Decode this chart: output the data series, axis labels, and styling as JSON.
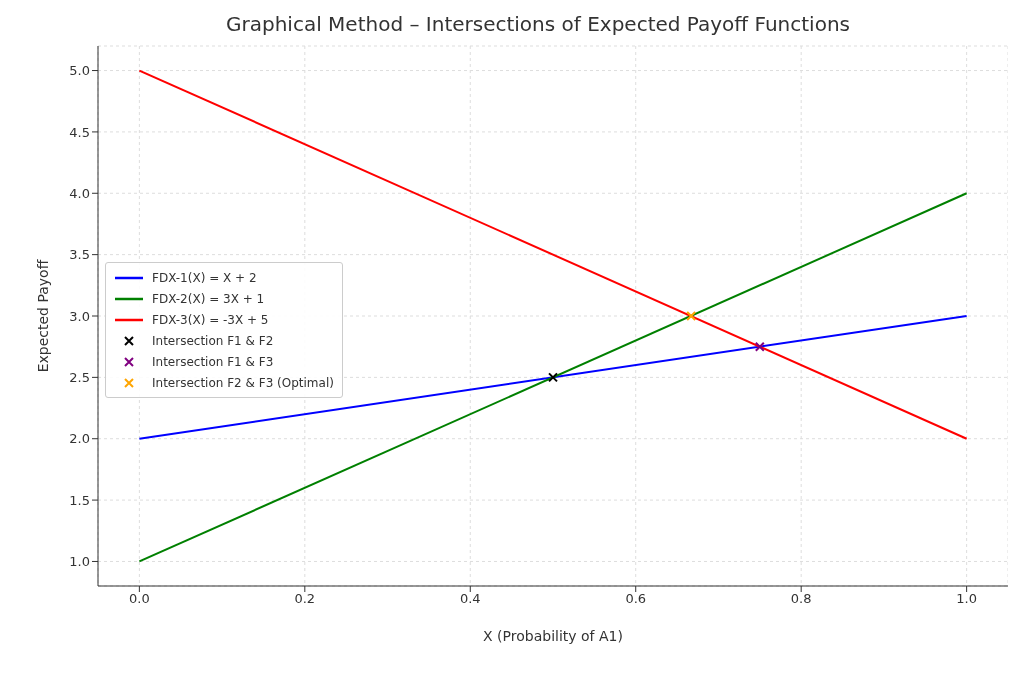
{
  "chart_data": {
    "type": "line",
    "title": "Graphical Method – Intersections of Expected Payoff Functions",
    "xlabel": "X (Probability of A1)",
    "ylabel": "Expected Payoff",
    "series": [
      {
        "name": "FDX-1(X) = X + 2",
        "color": "#0000ff",
        "x": [
          0,
          1
        ],
        "values": [
          2,
          3
        ],
        "marker": "none"
      },
      {
        "name": "FDX-2(X) = 3X + 1",
        "color": "#008000",
        "x": [
          0,
          1
        ],
        "values": [
          1,
          4
        ],
        "marker": "none"
      },
      {
        "name": "FDX-3(X) = -3X + 5",
        "color": "#ff0000",
        "x": [
          0,
          1
        ],
        "values": [
          5,
          2
        ],
        "marker": "none"
      },
      {
        "name": "Intersection F1 & F2",
        "type": "scatter",
        "marker": "cross",
        "color": "#000000",
        "x": [
          0.5
        ],
        "values": [
          2.5
        ]
      },
      {
        "name": "Intersection F1 & F3",
        "type": "scatter",
        "marker": "cross",
        "color": "#800080",
        "x": [
          0.75
        ],
        "values": [
          2.75
        ]
      },
      {
        "name": "Intersection F2 & F3 (Optimal)",
        "type": "scatter",
        "marker": "cross",
        "color": "#ffa500",
        "x": [
          0.667
        ],
        "values": [
          3.0
        ]
      }
    ],
    "xlim": [
      -0.05,
      1.05
    ],
    "xticks": [
      {
        "value": 0,
        "label": "0.0"
      },
      0.2,
      0.4,
      0.6,
      0.8,
      {
        "value": 1,
        "label": "1.0"
      }
    ],
    "ylim": [
      0.8,
      5.2
    ],
    "yticks": [
      {
        "value": 1,
        "label": "1.0"
      },
      1.5,
      {
        "value": 2,
        "label": "2.0"
      },
      2.5,
      {
        "value": 3,
        "label": "3.0"
      },
      3.5,
      {
        "value": 4,
        "label": "4.0"
      },
      4.5,
      {
        "value": 5,
        "label": "5.0"
      }
    ],
    "grid": true,
    "legend": "left",
    "line_style": "solid"
  }
}
